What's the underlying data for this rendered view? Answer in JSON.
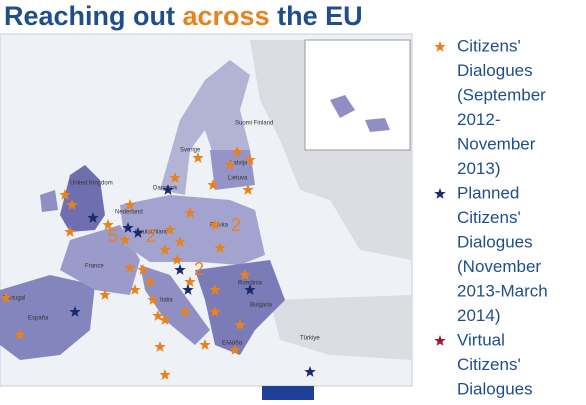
{
  "title": {
    "part1": "Reaching out ",
    "part2": "across",
    "part3": " the EU"
  },
  "legend": [
    {
      "lines": [
        "Citizens'",
        "Dialogues",
        "(September",
        "2012-",
        "November",
        "2013)"
      ]
    },
    {
      "lines": [
        "Planned",
        "Citizens'",
        "Dialogues",
        "(November",
        "2013-March",
        "2014)"
      ]
    },
    {
      "lines": [
        "Virtual",
        "Citizens'",
        "Dialogues"
      ]
    }
  ],
  "map": {
    "counts": [
      "5",
      "2",
      "2",
      "2"
    ],
    "countries": [
      "United Kingdom",
      "France",
      "España",
      "Portugal",
      "Deutschland",
      "Polska",
      "România",
      "Sverige",
      "Suomi Finland",
      "Türkiye",
      "Italia",
      "Danmark",
      "Nederland",
      "Lietuva",
      "Latvija",
      "Bulgaria",
      "Ελλάδα"
    ]
  }
}
